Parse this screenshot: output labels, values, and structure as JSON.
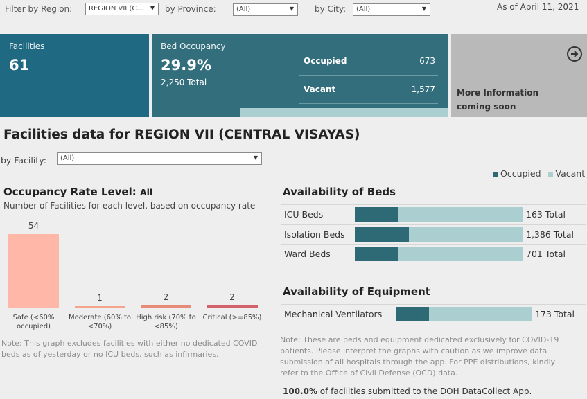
{
  "filters": {
    "region_label": "Filter by Region:",
    "region_value": "REGION VII (C...",
    "province_label": "by Province:",
    "province_value": "(All)",
    "city_label": "by City:",
    "city_value": "(All)",
    "as_of": "As of April 11, 2021"
  },
  "cards": {
    "facilities_label": "Facilities",
    "facilities_value": "61",
    "occupancy_label": "Bed Occupancy",
    "occupancy_value": "29.9%",
    "occupancy_total": "2,250 Total",
    "occupied_label": "Occupied",
    "occupied_value": "673",
    "vacant_label": "Vacant",
    "vacant_value": "1,577",
    "occupancy_fraction": 0.299,
    "more_info_line1": "More Information",
    "more_info_line2": "coming soon"
  },
  "section_title": "Facilities data for REGION VII (CENTRAL VISAYAS)",
  "facility_filter": {
    "label": "by Facility:",
    "value": "(All)"
  },
  "legend": {
    "occupied": "Occupied",
    "vacant": "Vacant"
  },
  "occupancy_rate": {
    "title": "Occupancy Rate Level:",
    "title_value": "All",
    "subtitle": "Number of Facilities for each level, based on occupancy rate",
    "note": "Note: This graph excludes facilities with either no dedicated COVID beds as of yesterday or no ICU beds, such as infirmaries."
  },
  "chart_data": {
    "type": "bar",
    "categories": [
      "Safe (<60% occupied)",
      "Moderate (60% to <70%)",
      "High risk (70% to <85%)",
      "Critical (>=85%)"
    ],
    "values": [
      54,
      1,
      2,
      2
    ],
    "colors": [
      "#ffb8a8",
      "#f5a58e",
      "#e88a78",
      "#d4606a"
    ]
  },
  "beds": {
    "title": "Availability of Beds",
    "rows": [
      {
        "name": "ICU Beds",
        "total": "163 Total",
        "occupied_fraction": 0.26
      },
      {
        "name": "Isolation Beds",
        "total": "1,386 Total",
        "occupied_fraction": 0.32
      },
      {
        "name": "Ward Beds",
        "total": "701 Total",
        "occupied_fraction": 0.26
      }
    ]
  },
  "equipment": {
    "title": "Availability of Equipment",
    "rows": [
      {
        "name": "Mechanical Ventilators",
        "total": "173 Total",
        "occupied_fraction": 0.24
      }
    ]
  },
  "bottom_note": {
    "line1": "Note: These are beds and equipment dedicated exclusively for COVID-19",
    "line2": "patients. Please interpret the graphs with caution as we improve data",
    "line3": "submission of all hospitals through the app. For PPE distributions, kindly",
    "line4": "refer to the Office of Civil Defense (OCD) data.",
    "submitted_pct": "100.0%",
    "submitted_text": " of facilities submitted to the DOH DataCollect App."
  },
  "colors": {
    "occupied": "#2d6a75",
    "vacant": "#abcfd1",
    "card_blue": "#1f6a82",
    "card_teal": "#336e7c",
    "card_grey": "#b9b9b9"
  }
}
